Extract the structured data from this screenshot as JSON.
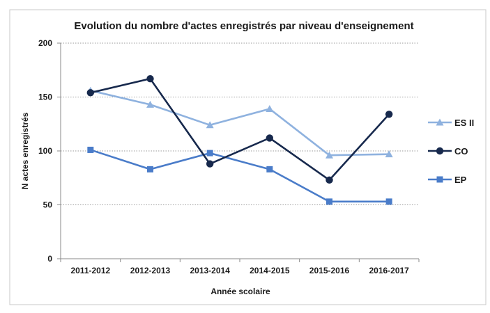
{
  "chart_data": {
    "type": "line",
    "title": "Evolution du nombre d'actes enregistrés par niveau d'enseignement",
    "xlabel": "Année scolaire",
    "ylabel": "N actes enregistrés",
    "categories": [
      "2011-2012",
      "2012-2013",
      "2013-2014",
      "2014-2015",
      "2015-2016",
      "2016-2017"
    ],
    "ylim": [
      0,
      200
    ],
    "yticks": [
      0,
      50,
      100,
      150,
      200
    ],
    "grid": true,
    "legend_position": "right",
    "series": [
      {
        "name": "ES II",
        "values": [
          156,
          143,
          124,
          139,
          96,
          97
        ],
        "color": "#8fb2df",
        "marker": "triangle"
      },
      {
        "name": "CO",
        "values": [
          154,
          167,
          88,
          112,
          73,
          134
        ],
        "color": "#17294d",
        "marker": "circle"
      },
      {
        "name": "EP",
        "values": [
          101,
          83,
          98,
          83,
          53,
          53
        ],
        "color": "#4a7cc9",
        "marker": "square"
      }
    ]
  }
}
